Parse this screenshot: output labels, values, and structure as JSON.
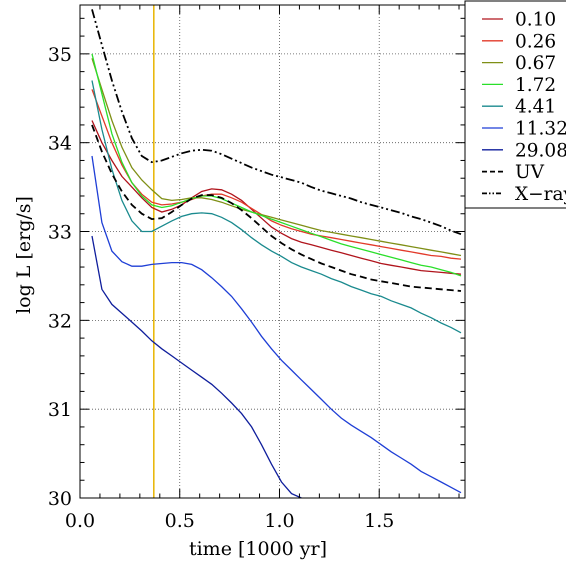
{
  "chart_data": {
    "type": "line",
    "xlabel": "time [1000 yr]",
    "ylabel": "log L [erg/s]",
    "xlim": [
      0.0,
      1.93
    ],
    "ylim": [
      30.0,
      35.55
    ],
    "xticks": [
      0.0,
      0.5,
      1.0,
      1.5
    ],
    "xtick_labels": [
      "0.0",
      "0.5",
      "1.0",
      "1.5"
    ],
    "yticks": [
      30,
      31,
      32,
      33,
      34,
      35
    ],
    "ytick_labels": [
      "30",
      "31",
      "32",
      "33",
      "34",
      "35"
    ],
    "grid": true,
    "grid_style": "dotted",
    "legend_position": "top-right",
    "vline": {
      "x": 0.37,
      "color": "#e8b400"
    },
    "series": [
      {
        "name": "0.10",
        "color": "#b0141c",
        "dash": "solid",
        "x": [
          0.06,
          0.11,
          0.16,
          0.21,
          0.26,
          0.31,
          0.36,
          0.41,
          0.46,
          0.51,
          0.56,
          0.61,
          0.66,
          0.71,
          0.76,
          0.81,
          0.86,
          0.91,
          0.96,
          1.01,
          1.06,
          1.11,
          1.16,
          1.21,
          1.26,
          1.31,
          1.36,
          1.41,
          1.46,
          1.51,
          1.56,
          1.61,
          1.66,
          1.71,
          1.76,
          1.81,
          1.86,
          1.91
        ],
        "y": [
          34.25,
          34.0,
          33.8,
          33.62,
          33.5,
          33.38,
          33.27,
          33.22,
          33.25,
          33.3,
          33.38,
          33.45,
          33.48,
          33.47,
          33.42,
          33.35,
          33.25,
          33.15,
          33.05,
          32.98,
          32.92,
          32.88,
          32.85,
          32.82,
          32.79,
          32.76,
          32.73,
          32.7,
          32.67,
          32.64,
          32.62,
          32.6,
          32.58,
          32.56,
          32.55,
          32.54,
          32.53,
          32.52
        ]
      },
      {
        "name": "0.26",
        "color": "#e23a2a",
        "dash": "solid",
        "x": [
          0.06,
          0.11,
          0.16,
          0.21,
          0.26,
          0.31,
          0.36,
          0.41,
          0.46,
          0.51,
          0.56,
          0.61,
          0.66,
          0.71,
          0.76,
          0.81,
          0.86,
          0.91,
          0.96,
          1.01,
          1.06,
          1.11,
          1.16,
          1.21,
          1.26,
          1.31,
          1.36,
          1.41,
          1.46,
          1.51,
          1.56,
          1.61,
          1.66,
          1.71,
          1.76,
          1.81,
          1.86,
          1.91
        ],
        "y": [
          34.6,
          34.3,
          34.0,
          33.75,
          33.55,
          33.42,
          33.33,
          33.3,
          33.31,
          33.33,
          33.36,
          33.4,
          33.42,
          33.42,
          33.38,
          33.33,
          33.26,
          33.19,
          33.12,
          33.07,
          33.03,
          33.0,
          32.97,
          32.95,
          32.93,
          32.91,
          32.89,
          32.87,
          32.85,
          32.83,
          32.81,
          32.79,
          32.77,
          32.75,
          32.73,
          32.72,
          32.7,
          32.69
        ]
      },
      {
        "name": "0.67",
        "color": "#7f8f16",
        "dash": "solid",
        "x": [
          0.06,
          0.11,
          0.16,
          0.21,
          0.26,
          0.31,
          0.36,
          0.41,
          0.46,
          0.51,
          0.56,
          0.61,
          0.66,
          0.71,
          0.76,
          0.81,
          0.86,
          0.91,
          0.96,
          1.01,
          1.06,
          1.11,
          1.16,
          1.21,
          1.26,
          1.31,
          1.36,
          1.41,
          1.46,
          1.51,
          1.56,
          1.61,
          1.66,
          1.71,
          1.76,
          1.81,
          1.86,
          1.91
        ],
        "y": [
          34.95,
          34.6,
          34.25,
          33.95,
          33.72,
          33.58,
          33.47,
          33.37,
          33.35,
          33.36,
          33.38,
          33.38,
          33.36,
          33.33,
          33.29,
          33.25,
          33.22,
          33.19,
          33.16,
          33.13,
          33.1,
          33.07,
          33.04,
          33.01,
          32.99,
          32.97,
          32.95,
          32.93,
          32.91,
          32.89,
          32.87,
          32.85,
          32.83,
          32.81,
          32.79,
          32.77,
          32.75,
          32.73
        ]
      },
      {
        "name": "1.72",
        "color": "#2adf2a",
        "dash": "solid",
        "x": [
          0.06,
          0.11,
          0.16,
          0.21,
          0.26,
          0.31,
          0.36,
          0.41,
          0.46,
          0.51,
          0.56,
          0.61,
          0.66,
          0.71,
          0.76,
          0.81,
          0.86,
          0.91,
          0.96,
          1.01,
          1.06,
          1.11,
          1.16,
          1.21,
          1.26,
          1.31,
          1.36,
          1.41,
          1.46,
          1.51,
          1.56,
          1.61,
          1.66,
          1.71,
          1.76,
          1.81,
          1.86,
          1.91
        ],
        "y": [
          35.0,
          34.55,
          34.1,
          33.78,
          33.55,
          33.4,
          33.3,
          33.27,
          33.29,
          33.33,
          33.37,
          33.4,
          33.4,
          33.37,
          33.32,
          33.27,
          33.22,
          33.18,
          33.14,
          33.1,
          33.06,
          33.02,
          32.98,
          32.94,
          32.9,
          32.86,
          32.83,
          32.8,
          32.77,
          32.74,
          32.71,
          32.68,
          32.65,
          32.62,
          32.6,
          32.57,
          32.54,
          32.5
        ]
      },
      {
        "name": "4.41",
        "color": "#1a8a8e",
        "dash": "solid",
        "x": [
          0.06,
          0.11,
          0.16,
          0.21,
          0.26,
          0.31,
          0.36,
          0.41,
          0.46,
          0.51,
          0.56,
          0.61,
          0.66,
          0.71,
          0.76,
          0.81,
          0.86,
          0.91,
          0.96,
          1.01,
          1.06,
          1.11,
          1.16,
          1.21,
          1.26,
          1.31,
          1.36,
          1.41,
          1.46,
          1.51,
          1.56,
          1.61,
          1.66,
          1.71,
          1.76,
          1.81,
          1.86,
          1.91
        ],
        "y": [
          34.7,
          34.15,
          33.7,
          33.35,
          33.12,
          33.0,
          33.0,
          33.06,
          33.12,
          33.17,
          33.2,
          33.21,
          33.2,
          33.16,
          33.1,
          33.02,
          32.93,
          32.85,
          32.78,
          32.72,
          32.65,
          32.6,
          32.56,
          32.52,
          32.47,
          32.43,
          32.38,
          32.34,
          32.3,
          32.27,
          32.22,
          32.18,
          32.14,
          32.08,
          32.03,
          31.97,
          31.92,
          31.86
        ]
      },
      {
        "name": "11.32",
        "color": "#1f3fd6",
        "dash": "solid",
        "x": [
          0.06,
          0.11,
          0.16,
          0.21,
          0.26,
          0.31,
          0.36,
          0.41,
          0.46,
          0.51,
          0.56,
          0.61,
          0.66,
          0.71,
          0.76,
          0.81,
          0.86,
          0.91,
          0.96,
          1.01,
          1.06,
          1.11,
          1.16,
          1.21,
          1.26,
          1.31,
          1.36,
          1.41,
          1.46,
          1.51,
          1.56,
          1.61,
          1.66,
          1.71,
          1.76,
          1.81,
          1.86,
          1.91
        ],
        "y": [
          33.85,
          33.1,
          32.78,
          32.66,
          32.61,
          32.61,
          32.63,
          32.64,
          32.65,
          32.65,
          32.63,
          32.57,
          32.48,
          32.38,
          32.27,
          32.13,
          31.98,
          31.82,
          31.68,
          31.55,
          31.44,
          31.33,
          31.22,
          31.11,
          31.0,
          30.9,
          30.82,
          30.75,
          30.68,
          30.6,
          30.52,
          30.45,
          30.38,
          30.3,
          30.24,
          30.18,
          30.12,
          30.06
        ]
      },
      {
        "name": "29.08",
        "color": "#0f1e9c",
        "dash": "solid",
        "x": [
          0.06,
          0.11,
          0.16,
          0.21,
          0.26,
          0.31,
          0.36,
          0.41,
          0.46,
          0.51,
          0.56,
          0.61,
          0.66,
          0.71,
          0.76,
          0.81,
          0.86,
          0.91,
          0.96,
          1.01,
          1.06,
          1.11
        ],
        "y": [
          32.95,
          32.35,
          32.18,
          32.08,
          31.98,
          31.88,
          31.77,
          31.68,
          31.6,
          31.52,
          31.44,
          31.36,
          31.28,
          31.18,
          31.07,
          30.95,
          30.8,
          30.6,
          30.38,
          30.18,
          30.05,
          30.0
        ]
      },
      {
        "name": "UV",
        "color": "#000000",
        "dash": "dashed",
        "x": [
          0.06,
          0.11,
          0.16,
          0.21,
          0.26,
          0.31,
          0.36,
          0.41,
          0.46,
          0.51,
          0.56,
          0.61,
          0.66,
          0.71,
          0.76,
          0.81,
          0.86,
          0.91,
          0.96,
          1.01,
          1.06,
          1.11,
          1.16,
          1.21,
          1.26,
          1.31,
          1.36,
          1.41,
          1.46,
          1.51,
          1.56,
          1.61,
          1.66,
          1.71,
          1.76,
          1.81,
          1.86,
          1.91
        ],
        "y": [
          34.2,
          33.9,
          33.65,
          33.45,
          33.3,
          33.2,
          33.14,
          33.15,
          33.22,
          33.3,
          33.37,
          33.41,
          33.41,
          33.38,
          33.32,
          33.24,
          33.15,
          33.05,
          32.95,
          32.87,
          32.8,
          32.74,
          32.69,
          32.64,
          32.6,
          32.56,
          32.52,
          32.49,
          32.46,
          32.44,
          32.42,
          32.4,
          32.38,
          32.37,
          32.36,
          32.35,
          32.34,
          32.33
        ]
      },
      {
        "name": "X−ray",
        "color": "#000000",
        "dash": "dashdotdot",
        "x": [
          0.06,
          0.11,
          0.16,
          0.21,
          0.26,
          0.31,
          0.36,
          0.41,
          0.46,
          0.51,
          0.56,
          0.61,
          0.66,
          0.71,
          0.76,
          0.81,
          0.86,
          0.91,
          0.96,
          1.01,
          1.06,
          1.11,
          1.16,
          1.21,
          1.26,
          1.31,
          1.36,
          1.41,
          1.46,
          1.51,
          1.56,
          1.61,
          1.66,
          1.71,
          1.76,
          1.81,
          1.86,
          1.91
        ],
        "y": [
          35.5,
          35.1,
          34.7,
          34.35,
          34.05,
          33.85,
          33.78,
          33.8,
          33.84,
          33.88,
          33.91,
          33.92,
          33.91,
          33.87,
          33.82,
          33.77,
          33.72,
          33.68,
          33.64,
          33.61,
          33.58,
          33.55,
          33.5,
          33.46,
          33.43,
          33.4,
          33.37,
          33.33,
          33.3,
          33.27,
          33.24,
          33.21,
          33.17,
          33.14,
          33.1,
          33.06,
          33.01,
          32.97
        ]
      }
    ]
  }
}
